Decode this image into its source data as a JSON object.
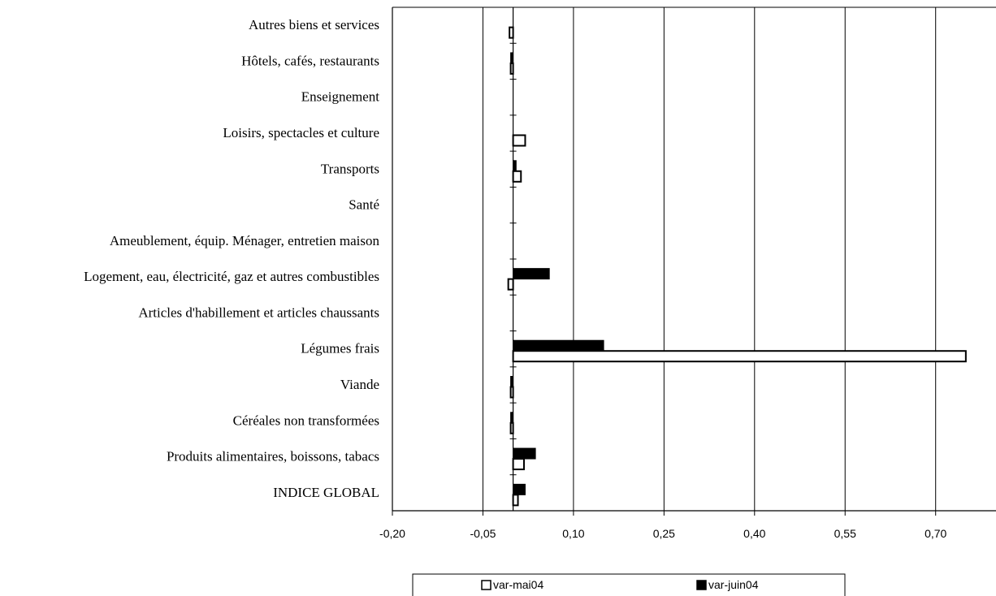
{
  "chart_data": {
    "type": "bar",
    "orientation": "horizontal",
    "categories": [
      "Autres biens et services",
      "Hôtels, cafés, restaurants",
      "Enseignement",
      "Loisirs, spectacles et culture",
      "Transports",
      "Santé",
      "Ameublement, équip. Ménager, entretien maison",
      "Logement, eau, électricité, gaz et autres combustibles",
      "Articles d'habillement et articles chaussants",
      "Légumes frais",
      "Viande",
      "Céréales non transformées",
      "Produits alimentaires, boissons, tabacs",
      "INDICE GLOBAL"
    ],
    "series": [
      {
        "name": "var-mai04",
        "color": "#ffffff",
        "values": [
          -0.006,
          -0.001,
          0.0,
          0.02,
          0.013,
          0.0,
          0.0,
          -0.008,
          0.0,
          0.75,
          -0.002,
          -0.002,
          0.018,
          0.008
        ]
      },
      {
        "name": "var-juin04",
        "color": "#000000",
        "values": [
          0.0,
          -0.002,
          0.0,
          0.0,
          0.005,
          0.0,
          0.0,
          0.06,
          0.0,
          0.15,
          -0.002,
          -0.002,
          0.037,
          0.02
        ]
      }
    ],
    "xlim": [
      -0.2,
      0.8
    ],
    "xticks": [
      "-0,20",
      "-0,05",
      "0,10",
      "0,25",
      "0,40",
      "0,55",
      "0,70"
    ],
    "xtick_values": [
      -0.2,
      -0.05,
      0.1,
      0.25,
      0.4,
      0.55,
      0.7
    ],
    "grid": true,
    "legend": "bottom",
    "title": "",
    "xlabel": "",
    "ylabel": ""
  }
}
